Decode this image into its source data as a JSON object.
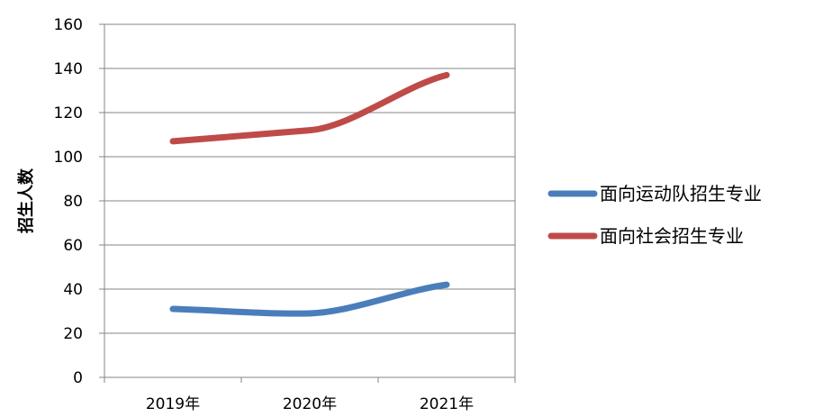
{
  "chart_data": {
    "type": "line",
    "categories": [
      "2019年",
      "2020年",
      "2021年"
    ],
    "series": [
      {
        "name": "面向运动队招生专业",
        "values": [
          31,
          29,
          42
        ],
        "color": "#4a7ebb"
      },
      {
        "name": "面向社会招生专业",
        "values": [
          107,
          112,
          137
        ],
        "color": "#be4b48"
      }
    ],
    "title": "",
    "xlabel": "",
    "ylabel": "招生人数",
    "ylim": [
      0,
      160
    ],
    "yticks": [
      "0",
      "20",
      "40",
      "60",
      "80",
      "100",
      "120",
      "140",
      "160"
    ],
    "grid": true,
    "legend_position": "right"
  }
}
